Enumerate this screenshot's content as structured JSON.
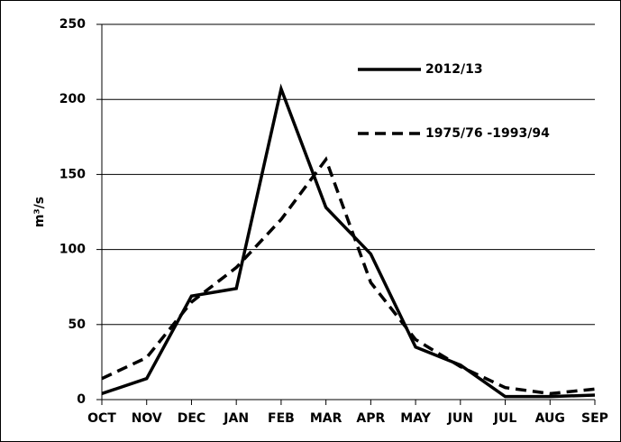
{
  "chart_data": {
    "type": "line",
    "ylabel": "m³/s",
    "categories": [
      "OCT",
      "NOV",
      "DEC",
      "JAN",
      "FEB",
      "MAR",
      "APR",
      "MAY",
      "JUN",
      "JUL",
      "AUG",
      "SEP"
    ],
    "series": [
      {
        "name": "2012/13",
        "color": "#000000",
        "dash": "solid",
        "values": [
          4,
          14,
          69,
          74,
          207,
          128,
          97,
          35,
          23,
          2,
          2,
          3
        ]
      },
      {
        "name": "1975/76 -1993/94",
        "color": "#000000",
        "dash": "dashed",
        "values": [
          14,
          28,
          65,
          88,
          120,
          160,
          78,
          40,
          22,
          8,
          4,
          7
        ]
      }
    ],
    "ylim": [
      0,
      250
    ],
    "yticks": [
      0,
      50,
      100,
      150,
      200,
      250
    ],
    "grid": true,
    "legend": "upper right"
  }
}
